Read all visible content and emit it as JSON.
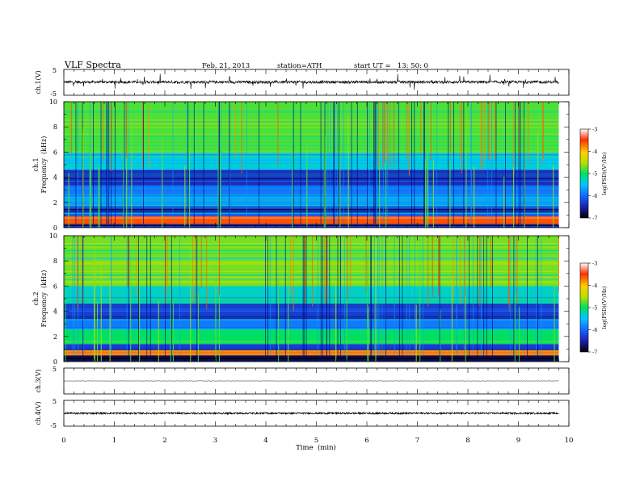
{
  "header": {
    "title": "VLF Spectra",
    "date": "Feb. 21, 2013",
    "station": "station=ATH",
    "start_ut": "start UT =   13: 50: 0"
  },
  "chart_data": [
    {
      "type": "line",
      "panel": "ch.1 waveform",
      "ylabel": "ch.1(V)",
      "ylim": [
        -5,
        5
      ],
      "yticks": [
        "5",
        "-5"
      ],
      "x_range_min": [
        0,
        9.8
      ],
      "baseline_v": 0.1,
      "noise_amplitude_v": 1.0,
      "spike_amplitude_v": 3.0,
      "line_color": "#000000"
    },
    {
      "type": "heatmap",
      "panel": "ch.1 spectrogram",
      "ylabel_lines": [
        "ch.1",
        "Frequency  (kHz)"
      ],
      "ylim": [
        0,
        10
      ],
      "yticks": [
        "0",
        "2",
        "4",
        "6",
        "8",
        "10"
      ],
      "x_range_min": [
        0,
        9.8
      ],
      "colorbar": {
        "label": "log(PSD)(V²/Hz)",
        "range": [
          -7,
          -3
        ],
        "ticks": [
          "-3",
          "-4",
          "-5",
          "-6",
          "-7"
        ],
        "colors": [
          "#000000",
          "#1a1aa0",
          "#1560ff",
          "#00c8ff",
          "#00e060",
          "#b8e000",
          "#ffd000",
          "#ff3000",
          "#ffffff"
        ]
      },
      "bands_khz_logpsd": [
        [
          0.0,
          0.3,
          -6.6
        ],
        [
          0.3,
          0.9,
          -3.6
        ],
        [
          0.9,
          1.2,
          -6.0
        ],
        [
          1.2,
          1.7,
          -6.4
        ],
        [
          1.7,
          2.5,
          -5.7
        ],
        [
          2.5,
          3.3,
          -5.9
        ],
        [
          3.3,
          4.6,
          -6.4
        ],
        [
          4.6,
          6.0,
          -5.4
        ],
        [
          6.0,
          10.0,
          -4.8
        ]
      ],
      "strongest_band_khz": [
        0.3,
        0.9
      ],
      "impulsive_noise": "vertical broadband streaks throughout, strongest 0–1.3 min and 5–9.5 min"
    },
    {
      "type": "heatmap",
      "panel": "ch.2 spectrogram",
      "ylabel_lines": [
        "ch.2",
        "Frequency  (kHz)"
      ],
      "ylim": [
        0,
        10
      ],
      "yticks": [
        "0",
        "2",
        "4",
        "6",
        "8",
        "10"
      ],
      "x_range_min": [
        0,
        9.8
      ],
      "colorbar": {
        "label": "log(PSD)(V²/Hz)",
        "range": [
          -7,
          -3
        ],
        "ticks": [
          "-3",
          "-4",
          "-5",
          "-6",
          "-7"
        ],
        "colors": [
          "#000000",
          "#1a1aa0",
          "#1560ff",
          "#00c8ff",
          "#00e060",
          "#b8e000",
          "#ffd000",
          "#ff3000",
          "#ffffff"
        ]
      },
      "bands_khz_logpsd": [
        [
          0.0,
          0.5,
          -6.8
        ],
        [
          0.5,
          0.9,
          -3.8
        ],
        [
          0.9,
          1.4,
          -6.3
        ],
        [
          1.4,
          2.6,
          -5.0
        ],
        [
          2.6,
          3.4,
          -5.9
        ],
        [
          3.4,
          4.6,
          -6.3
        ],
        [
          4.6,
          6.0,
          -5.3
        ],
        [
          6.0,
          10.0,
          -4.7
        ]
      ],
      "strongest_band_khz": [
        0.5,
        0.9
      ],
      "impulsive_noise": "vertical broadband streaks throughout, strongest 0–1.3 min and 5–9.5 min"
    },
    {
      "type": "line",
      "panel": "ch.3 waveform",
      "ylabel": "ch.3(V)",
      "ylim": [
        -5,
        5
      ],
      "yticks": [
        "5"
      ],
      "x_range_min": [
        0,
        9.8
      ],
      "baseline_v": 0.0,
      "noise_amplitude_v": 0.15,
      "line_color": "#000000"
    },
    {
      "type": "line",
      "panel": "ch.4 waveform",
      "ylabel": "ch.4(V)",
      "ylim": [
        -5,
        5
      ],
      "yticks": [
        "5",
        "-5"
      ],
      "x_range_min": [
        0,
        9.8
      ],
      "baseline_v": 0.0,
      "noise_amplitude_v": 0.6,
      "line_color": "#000000"
    }
  ],
  "x_axis": {
    "label": "Time  (min)",
    "range": [
      0,
      10
    ],
    "ticks": [
      "0",
      "1",
      "2",
      "3",
      "4",
      "5",
      "6",
      "7",
      "8",
      "9",
      "10"
    ]
  }
}
